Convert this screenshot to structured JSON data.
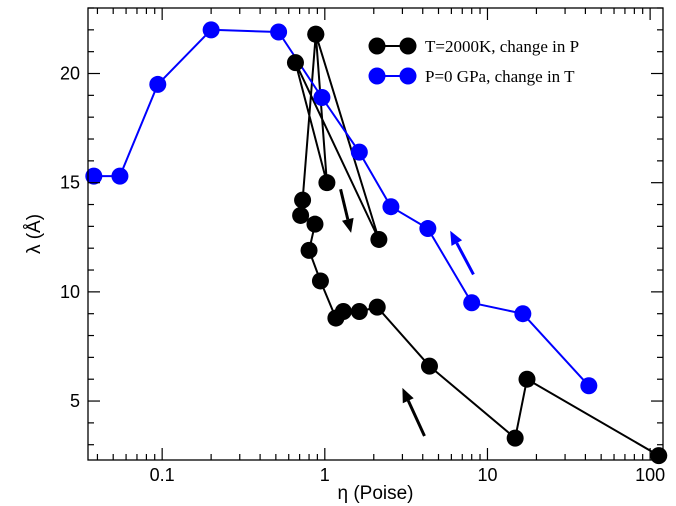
{
  "chart_data": {
    "type": "line",
    "xlabel": "η (Poise)",
    "ylabel": "λ (Å)",
    "xscale": "log",
    "xlim": [
      0.035,
      120
    ],
    "ylim": [
      2.3,
      23
    ],
    "xticks": [
      {
        "value": 0.1,
        "label": "0.1"
      },
      {
        "value": 1,
        "label": "1"
      },
      {
        "value": 10,
        "label": "10"
      },
      {
        "value": 100,
        "label": "100"
      }
    ],
    "yticks": [
      {
        "value": 5,
        "label": "5"
      },
      {
        "value": 10,
        "label": "10"
      },
      {
        "value": 15,
        "label": "15"
      },
      {
        "value": 20,
        "label": "20"
      }
    ],
    "grid": false,
    "legend_position": "top-right",
    "series": [
      {
        "name": "T=2000K, change in P",
        "color": "#000000",
        "points": [
          {
            "x": 0.88,
            "y": 21.8
          },
          {
            "x": 2.15,
            "y": 12.4
          },
          {
            "x": 0.66,
            "y": 20.5
          },
          {
            "x": 1.03,
            "y": 15.0
          },
          {
            "x": 0.88,
            "y": 21.8
          },
          {
            "x": 0.73,
            "y": 14.2
          },
          {
            "x": 0.71,
            "y": 13.5
          },
          {
            "x": 0.87,
            "y": 13.1
          },
          {
            "x": 0.8,
            "y": 11.9
          },
          {
            "x": 0.94,
            "y": 10.5
          },
          {
            "x": 1.17,
            "y": 8.8
          },
          {
            "x": 1.3,
            "y": 9.1
          },
          {
            "x": 1.63,
            "y": 9.1
          },
          {
            "x": 2.1,
            "y": 9.3
          },
          {
            "x": 4.4,
            "y": 6.6
          },
          {
            "x": 14.8,
            "y": 3.3
          },
          {
            "x": 17.5,
            "y": 6.0
          },
          {
            "x": 113,
            "y": 2.5
          }
        ]
      },
      {
        "name": "P=0 GPa, change in T",
        "color": "#0000ff",
        "points": [
          {
            "x": 0.038,
            "y": 15.3
          },
          {
            "x": 0.055,
            "y": 15.3
          },
          {
            "x": 0.094,
            "y": 19.5
          },
          {
            "x": 0.2,
            "y": 22.0
          },
          {
            "x": 0.52,
            "y": 21.9
          },
          {
            "x": 0.96,
            "y": 18.9
          },
          {
            "x": 1.63,
            "y": 16.4
          },
          {
            "x": 2.55,
            "y": 13.9
          },
          {
            "x": 4.3,
            "y": 12.9
          },
          {
            "x": 8.0,
            "y": 9.5
          },
          {
            "x": 16.5,
            "y": 9.0
          },
          {
            "x": 42.0,
            "y": 5.7
          }
        ]
      }
    ],
    "arrows": [
      {
        "color": "#000000",
        "from": {
          "x": 1.25,
          "y": 14.7
        },
        "to": {
          "x": 1.45,
          "y": 12.7
        }
      },
      {
        "color": "#000000",
        "from": {
          "x": 4.1,
          "y": 3.4
        },
        "to": {
          "x": 3.0,
          "y": 5.6
        }
      },
      {
        "color": "#0000ff",
        "from": {
          "x": 8.2,
          "y": 10.8
        },
        "to": {
          "x": 5.9,
          "y": 12.8
        }
      }
    ]
  }
}
